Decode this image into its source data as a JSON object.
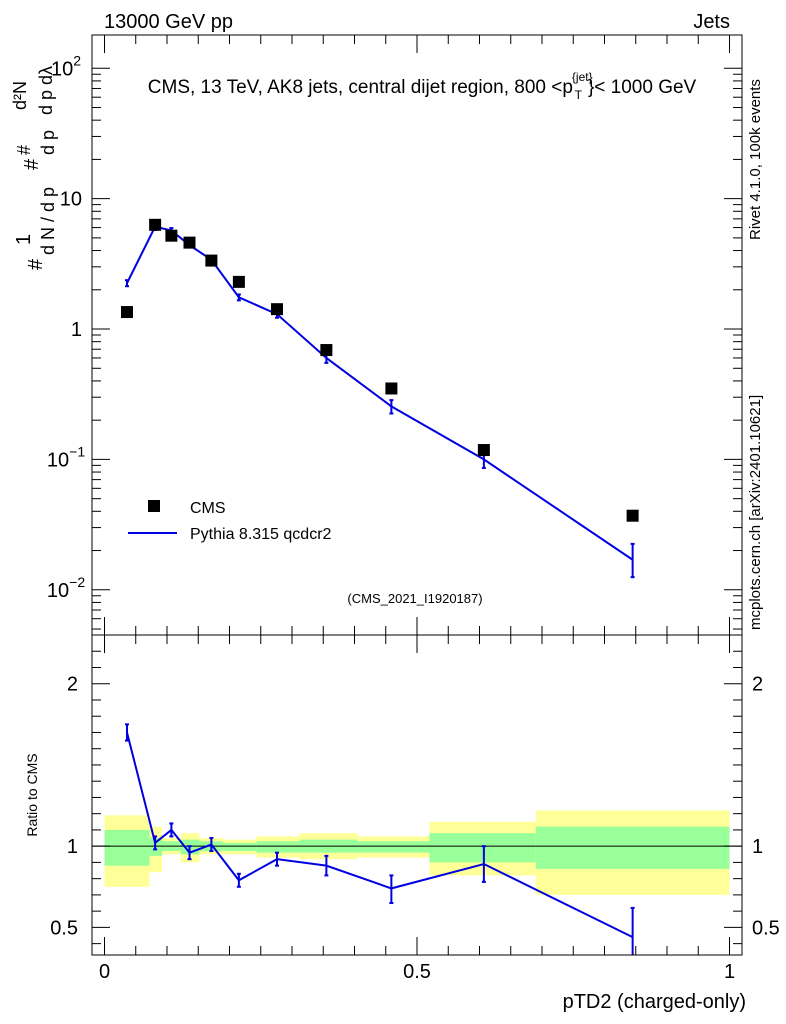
{
  "header": {
    "left": "13000 GeV pp",
    "right": "Jets"
  },
  "side_labels": {
    "rivet": "Rivet 4.1.0,  100k events",
    "mcplots": "mcplots.cern.ch [arXiv:2401.10621]"
  },
  "colors": {
    "mc_line": "#0000e0",
    "band_inner": "#99ff99",
    "band_outer": "#ffff99",
    "data_marker": "#000000",
    "watermark": "#999999"
  },
  "chart_data": [
    {
      "type": "scatter",
      "panel": "main",
      "title": "CMS, 13 TeV, AK8 jets, central dijet region, 800 <p_T^{jet}< 1000 GeV",
      "ylabel": "1/(dN/dp_T) d²N/(dp_T dλ)",
      "yscale": "log",
      "ylim": [
        0.0045,
        180
      ],
      "xlim": [
        -0.02,
        1.02
      ],
      "y_ticks": [
        {
          "value": 100,
          "base": "10",
          "exp": "2"
        },
        {
          "value": 10,
          "base": "10",
          "exp": ""
        },
        {
          "value": 1,
          "base": "1",
          "exp": ""
        },
        {
          "value": 0.1,
          "base": "10",
          "exp": "−1"
        },
        {
          "value": 0.01,
          "base": "10",
          "exp": "−2"
        }
      ],
      "watermark": "(CMS_2021_I1920187)",
      "legend": {
        "position": "bottom-left",
        "entries": [
          {
            "label": "CMS",
            "kind": "marker"
          },
          {
            "label": "Pythia 8.315 qcdcr2",
            "kind": "line"
          }
        ]
      },
      "series": [
        {
          "name": "CMS",
          "x": [
            0.036,
            0.081,
            0.107,
            0.136,
            0.171,
            0.215,
            0.276,
            0.355,
            0.459,
            0.607,
            0.845
          ],
          "y": [
            1.35,
            6.3,
            5.2,
            4.6,
            3.35,
            2.3,
            1.42,
            0.69,
            0.35,
            0.118,
            0.037
          ]
        },
        {
          "name": "Pythia 8.315 qcdcr2",
          "x": [
            0.036,
            0.081,
            0.107,
            0.136,
            0.171,
            0.215,
            0.276,
            0.355,
            0.459,
            0.607,
            0.845
          ],
          "y": [
            2.25,
            6.1,
            5.7,
            4.4,
            3.4,
            1.75,
            1.3,
            0.6,
            0.255,
            0.1,
            0.017
          ],
          "yerr_low": [
            0.12,
            0.35,
            0.25,
            0.18,
            0.15,
            0.09,
            0.08,
            0.05,
            0.03,
            0.014,
            0.0045
          ],
          "yerr_high": [
            0.12,
            0.35,
            0.25,
            0.18,
            0.15,
            0.09,
            0.08,
            0.05,
            0.03,
            0.014,
            0.0055
          ]
        }
      ]
    },
    {
      "type": "line",
      "panel": "ratio",
      "xlabel": "pTD2 (charged-only)",
      "ylabel": "Ratio to CMS",
      "ylim": [
        0.33,
        2.3
      ],
      "xlim": [
        -0.02,
        1.02
      ],
      "x_ticks": [
        "0",
        "0.5",
        "1"
      ],
      "y_ticks": [
        "0.5",
        "1",
        "2"
      ],
      "reference_line": 1,
      "bands": [
        {
          "x_low": 0.0,
          "x_high": 0.072,
          "inner_low": 0.88,
          "inner_high": 1.1,
          "outer_low": 0.75,
          "outer_high": 1.19
        },
        {
          "x_low": 0.072,
          "x_high": 0.092,
          "inner_low": 0.94,
          "inner_high": 1.05,
          "outer_low": 0.84,
          "outer_high": 1.12
        },
        {
          "x_low": 0.092,
          "x_high": 0.122,
          "inner_low": 0.97,
          "inner_high": 1.03,
          "outer_low": 0.95,
          "outer_high": 1.05
        },
        {
          "x_low": 0.122,
          "x_high": 0.152,
          "inner_low": 0.95,
          "inner_high": 1.04,
          "outer_low": 0.9,
          "outer_high": 1.08
        },
        {
          "x_low": 0.152,
          "x_high": 0.19,
          "inner_low": 0.97,
          "inner_high": 1.03,
          "outer_low": 0.95,
          "outer_high": 1.05
        },
        {
          "x_low": 0.19,
          "x_high": 0.243,
          "inner_low": 0.97,
          "inner_high": 1.02,
          "outer_low": 0.95,
          "outer_high": 1.04
        },
        {
          "x_low": 0.243,
          "x_high": 0.312,
          "inner_low": 0.96,
          "inner_high": 1.03,
          "outer_low": 0.93,
          "outer_high": 1.06
        },
        {
          "x_low": 0.312,
          "x_high": 0.405,
          "inner_low": 0.96,
          "inner_high": 1.04,
          "outer_low": 0.92,
          "outer_high": 1.08
        },
        {
          "x_low": 0.405,
          "x_high": 0.52,
          "inner_low": 0.96,
          "inner_high": 1.03,
          "outer_low": 0.93,
          "outer_high": 1.06
        },
        {
          "x_low": 0.52,
          "x_high": 0.69,
          "inner_low": 0.9,
          "inner_high": 1.08,
          "outer_low": 0.82,
          "outer_high": 1.15
        },
        {
          "x_low": 0.69,
          "x_high": 1.0,
          "inner_low": 0.86,
          "inner_high": 1.12,
          "outer_low": 0.7,
          "outer_high": 1.22
        }
      ],
      "series": [
        {
          "name": "Pythia 8.315 qcdcr2 / CMS",
          "x": [
            0.036,
            0.081,
            0.107,
            0.136,
            0.171,
            0.215,
            0.276,
            0.355,
            0.459,
            0.607,
            0.845
          ],
          "y": [
            1.7,
            1.02,
            1.1,
            0.96,
            1.01,
            0.79,
            0.92,
            0.88,
            0.74,
            0.89,
            0.44
          ],
          "yerr_low": [
            0.05,
            0.04,
            0.04,
            0.04,
            0.04,
            0.04,
            0.04,
            0.06,
            0.09,
            0.11,
            0.12
          ],
          "yerr_high": [
            0.05,
            0.04,
            0.04,
            0.04,
            0.04,
            0.04,
            0.04,
            0.06,
            0.08,
            0.11,
            0.18
          ]
        }
      ]
    }
  ]
}
